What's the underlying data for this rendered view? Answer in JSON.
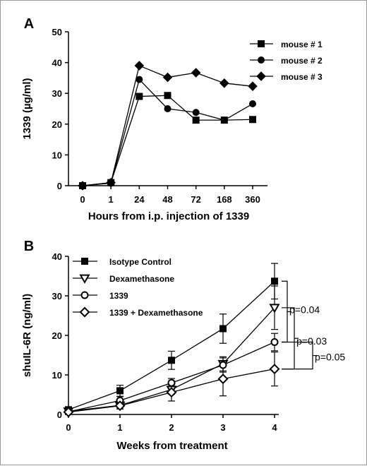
{
  "chart_data": [
    {
      "panel": "A",
      "type": "line",
      "xlabel": "Hours from i.p. injection of 1339",
      "ylabel": "1339 (µg/ml)",
      "categories": [
        "0",
        "1",
        "24",
        "48",
        "72",
        "168",
        "360"
      ],
      "ylim": [
        0,
        50
      ],
      "yticks": [
        "0",
        "10",
        "20",
        "30",
        "40",
        "50"
      ],
      "legend_position": "top-right",
      "series": [
        {
          "name": "mouse # 1",
          "marker": "square",
          "values": [
            0,
            1,
            29,
            29.3,
            21.3,
            21.3,
            21.5
          ]
        },
        {
          "name": "mouse # 2",
          "marker": "circle",
          "values": [
            0,
            0.8,
            34.5,
            25,
            23.8,
            21.3,
            26.6
          ]
        },
        {
          "name": "mouse # 3",
          "marker": "diamond",
          "values": [
            0,
            1,
            39,
            35.2,
            36.7,
            33.3,
            32.3
          ]
        }
      ]
    },
    {
      "panel": "B",
      "type": "line",
      "xlabel": "Weeks from treatment",
      "ylabel": "shuIL-6R (ng/ml)",
      "x": [
        0,
        1,
        2,
        3,
        4
      ],
      "xticks": [
        "0",
        "1",
        "2",
        "3",
        "4"
      ],
      "ylim": [
        0,
        40
      ],
      "yticks": [
        "0",
        "10",
        "20",
        "30",
        "40"
      ],
      "legend_position": "top-left",
      "series": [
        {
          "name": "Isotype Control",
          "marker": "square",
          "values": [
            1.2,
            6,
            13.7,
            21.7,
            33.7
          ],
          "errors": [
            0.5,
            1.4,
            2.3,
            3.7,
            4.5
          ]
        },
        {
          "name": "Dexamethasone",
          "marker": "triangle-down-open",
          "values": [
            0.8,
            2.3,
            6.3,
            12.8,
            27
          ],
          "errors": [
            0.4,
            0.9,
            1.2,
            1.8,
            5.5
          ]
        },
        {
          "name": "1339",
          "marker": "circle-open",
          "values": [
            0.7,
            3.5,
            8,
            12.5,
            18.3
          ],
          "errors": [
            0.3,
            1.0,
            1.1,
            1.8,
            2.2
          ]
        },
        {
          "name": "1339 + Dexamethasone",
          "marker": "diamond-open",
          "values": [
            0.6,
            2.2,
            5.6,
            9,
            11.5
          ],
          "errors": [
            0.3,
            0.8,
            2.2,
            4.3,
            4.3
          ]
        }
      ],
      "annotations": [
        {
          "text": "p=0.04",
          "compares": [
            "Isotype Control",
            "1339"
          ]
        },
        {
          "text": "p=0.03",
          "compares": [
            "Dexamethasone",
            "1339 + Dexamethasone"
          ]
        },
        {
          "text": "p=0.05",
          "compares": [
            "1339",
            "1339 + Dexamethasone"
          ]
        }
      ]
    }
  ]
}
